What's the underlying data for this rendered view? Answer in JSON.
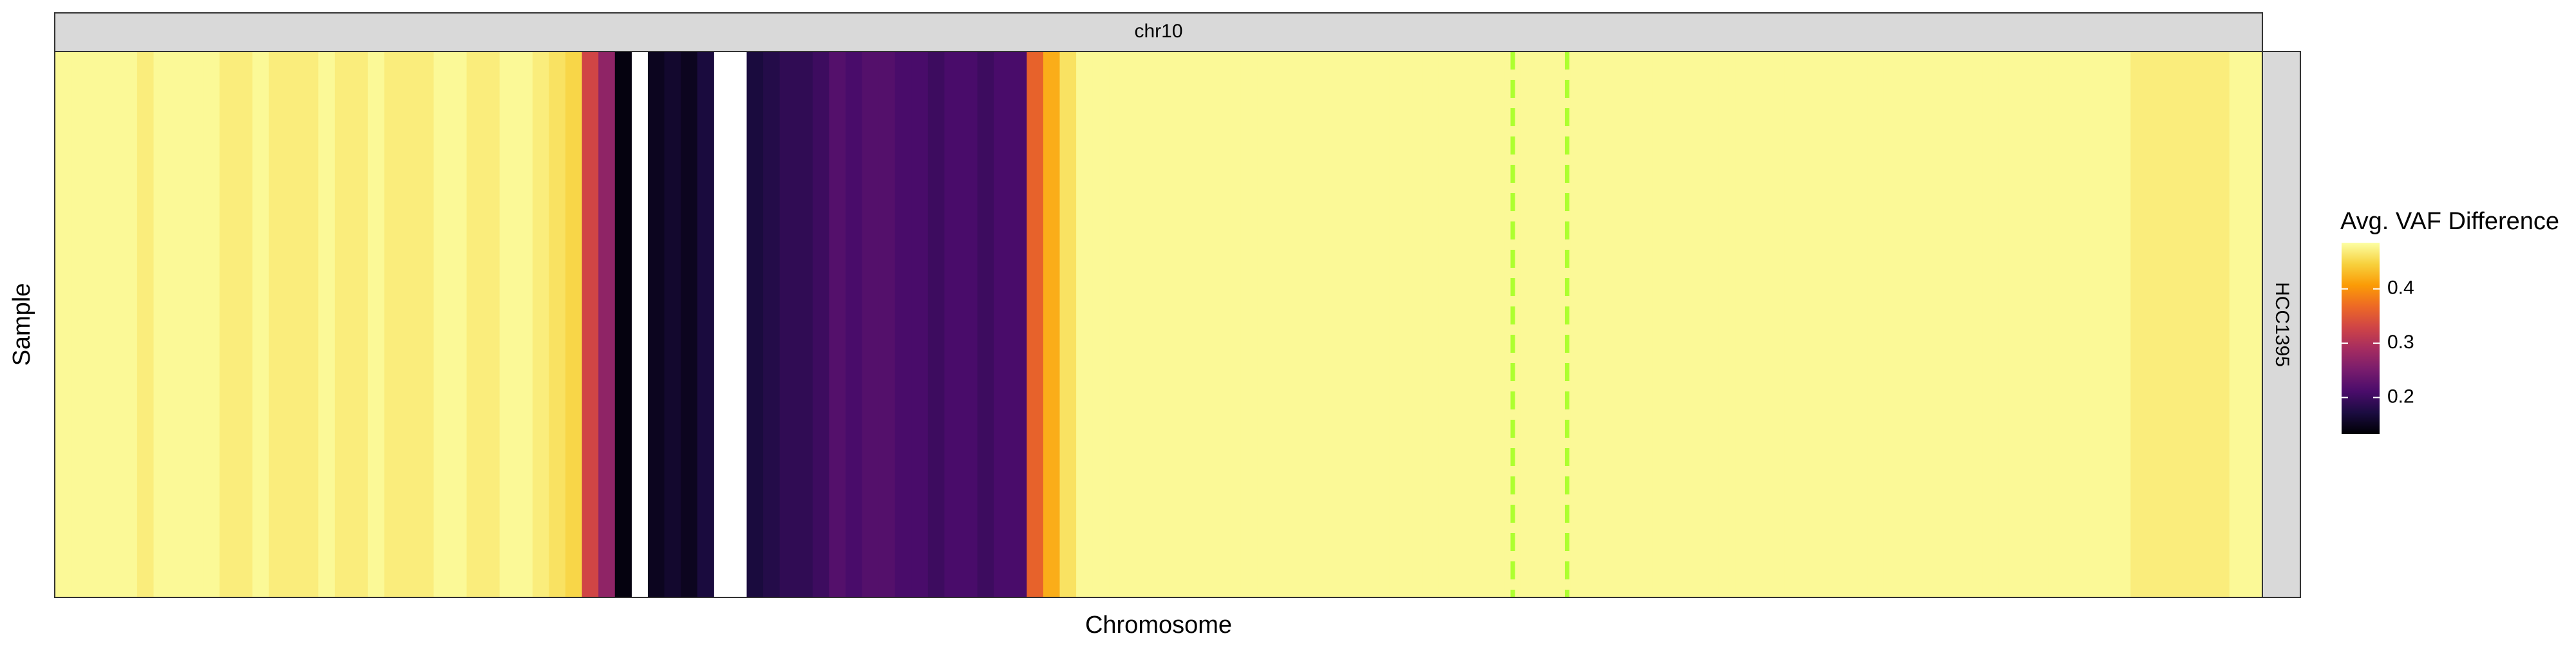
{
  "chart_data": {
    "type": "heatmap",
    "facet_top": "chr10",
    "facet_right": "HCC1395",
    "xlabel": "Chromosome",
    "ylabel": "Sample",
    "legend_title": "Avg. VAF Difference",
    "xlim": [
      0,
      134
    ],
    "values": [
      0.48,
      0.48,
      0.48,
      0.48,
      0.48,
      0.47,
      0.48,
      0.48,
      0.48,
      0.48,
      0.47,
      0.47,
      0.48,
      0.47,
      0.47,
      0.47,
      0.48,
      0.47,
      0.47,
      0.48,
      0.47,
      0.47,
      0.47,
      0.48,
      0.48,
      0.47,
      0.47,
      0.48,
      0.48,
      0.47,
      0.46,
      0.45,
      0.33,
      0.27,
      0.14,
      null,
      0.15,
      0.16,
      0.15,
      0.17,
      null,
      null,
      0.17,
      0.18,
      0.19,
      0.19,
      0.2,
      0.22,
      0.21,
      0.22,
      0.22,
      0.21,
      0.21,
      0.2,
      0.21,
      0.21,
      0.2,
      0.21,
      0.21,
      0.36,
      0.42,
      0.46,
      0.48,
      0.48,
      0.48,
      0.48,
      0.48,
      0.48,
      0.48,
      0.48,
      0.48,
      0.48,
      0.48,
      0.48,
      0.48,
      0.48,
      0.48,
      0.48,
      0.48,
      0.48,
      0.48,
      0.48,
      0.48,
      0.48,
      0.48,
      0.48,
      0.48,
      0.48,
      0.48,
      0.48,
      0.48,
      0.48,
      0.48,
      0.48,
      0.48,
      0.48,
      0.48,
      0.48,
      0.48,
      0.48,
      0.48,
      0.48,
      0.48,
      0.48,
      0.48,
      0.48,
      0.48,
      0.48,
      0.48,
      0.48,
      0.48,
      0.48,
      0.48,
      0.48,
      0.48,
      0.48,
      0.48,
      0.48,
      0.48,
      0.48,
      0.48,
      0.48,
      0.48,
      0.48,
      0.48,
      0.48,
      0.47,
      0.47,
      0.47,
      0.47,
      0.47,
      0.47,
      0.48,
      0.48
    ],
    "vlines": [
      88.5,
      91.8
    ],
    "vline_color": "#adff2f",
    "clim": [
      0.133,
      0.485
    ],
    "cticks": [
      0.2,
      0.3,
      0.4
    ],
    "colorscale": [
      "#000004",
      "#1b0c41",
      "#4a0c6b",
      "#781c6d",
      "#a52c60",
      "#cf4446",
      "#ed6925",
      "#fb9b06",
      "#f7d13d",
      "#fcffa4"
    ]
  }
}
